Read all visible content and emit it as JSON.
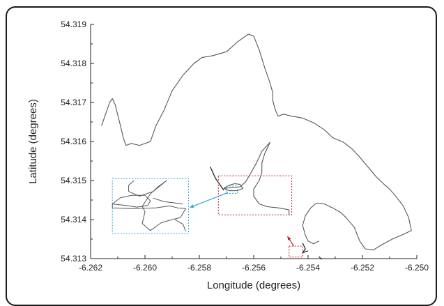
{
  "chart_data": {
    "type": "line",
    "xlabel": "Longitude (degrees)",
    "ylabel": "Latitude (degrees)",
    "xlim": [
      -6.262,
      -6.25
    ],
    "ylim": [
      54.313,
      54.319
    ],
    "xticks": [
      "-6.262",
      "-6.260",
      "-6.258",
      "-6.256",
      "-6.254",
      "-6.252",
      "-6.250"
    ],
    "yticks": [
      "54.313",
      "54.314",
      "54.315",
      "54.316",
      "54.317",
      "54.318",
      "54.319"
    ],
    "grid": false,
    "colors": {
      "line": "#555555",
      "cyan": "#2aa7d8",
      "red": "#c0202a"
    },
    "main_path": [
      [
        -6.2616,
        54.3164
      ],
      [
        -6.2615,
        54.3166
      ],
      [
        -6.2613,
        54.317
      ],
      [
        -6.2612,
        54.3171
      ],
      [
        -6.2611,
        54.31695
      ],
      [
        -6.2609,
        54.3164
      ],
      [
        -6.2608,
        54.3161
      ],
      [
        -6.2607,
        54.3159
      ],
      [
        -6.2605,
        54.31595
      ],
      [
        -6.2602,
        54.3159
      ],
      [
        -6.2598,
        54.316
      ],
      [
        -6.2596,
        54.3164
      ],
      [
        -6.2593,
        54.3168
      ],
      [
        -6.259,
        54.3173
      ],
      [
        -6.2586,
        54.3177
      ],
      [
        -6.2582,
        54.318
      ],
      [
        -6.2579,
        54.31815
      ],
      [
        -6.2575,
        54.3182
      ],
      [
        -6.257,
        54.3183
      ],
      [
        -6.2566,
        54.31855
      ],
      [
        -6.2562,
        54.31875
      ],
      [
        -6.256,
        54.3187
      ],
      [
        -6.2558,
        54.31835
      ],
      [
        -6.2556,
        54.3179
      ],
      [
        -6.2554,
        54.3175
      ],
      [
        -6.2553,
        54.31725
      ],
      [
        -6.2553,
        54.31705
      ],
      [
        -6.2552,
        54.3168
      ],
      [
        -6.2551,
        54.31665
      ],
      [
        -6.2549,
        54.3167
      ],
      [
        -6.2546,
        54.31665
      ],
      [
        -6.2542,
        54.3166
      ],
      [
        -6.2538,
        54.31648
      ],
      [
        -6.2534,
        54.3163
      ],
      [
        -6.2531,
        54.3161
      ],
      [
        -6.2527,
        54.31598
      ],
      [
        -6.2524,
        54.31582
      ],
      [
        -6.2521,
        54.3156
      ],
      [
        -6.2518,
        54.31535
      ],
      [
        -6.2515,
        54.3151
      ],
      [
        -6.2512,
        54.3149
      ],
      [
        -6.251,
        54.31478
      ],
      [
        -6.2508,
        54.31462
      ],
      [
        -6.2505,
        54.31435
      ],
      [
        -6.2503,
        54.31405
      ],
      [
        -6.2502,
        54.31372
      ],
      [
        -6.2505,
        54.31362
      ],
      [
        -6.2509,
        54.3135
      ],
      [
        -6.2513,
        54.31335
      ],
      [
        -6.2516,
        54.31322
      ],
      [
        -6.2519,
        54.31325
      ],
      [
        -6.2521,
        54.31345
      ],
      [
        -6.2523,
        54.3138
      ],
      [
        -6.2526,
        54.31405
      ],
      [
        -6.2528,
        54.31418
      ],
      [
        -6.2531,
        54.3143
      ],
      [
        -6.2534,
        54.3144
      ],
      [
        -6.2537,
        54.31442
      ],
      [
        -6.2539,
        54.3143
      ],
      [
        -6.2541,
        54.3141
      ],
      [
        -6.2542,
        54.31385
      ],
      [
        -6.2541,
        54.3136
      ],
      [
        -6.254,
        54.31345
      ],
      [
        -6.2538,
        54.31338
      ],
      [
        -6.2536,
        54.31345
      ]
    ],
    "detail_path": [
      [
        -6.2571,
        54.3148
      ],
      [
        -6.2569,
        54.31488
      ],
      [
        -6.2567,
        54.31492
      ],
      [
        -6.2565,
        54.3149
      ],
      [
        -6.2564,
        54.3148
      ],
      [
        -6.2566,
        54.31474
      ],
      [
        -6.2569,
        54.31474
      ],
      [
        -6.2571,
        54.3148
      ],
      [
        -6.2565,
        54.31484
      ],
      [
        -6.2563,
        54.31496
      ],
      [
        -6.2561,
        54.3152
      ],
      [
        -6.2559,
        54.31545
      ],
      [
        -6.2557,
        54.31575
      ],
      [
        -6.2555,
        54.3159
      ],
      [
        -6.2554,
        54.31598
      ],
      [
        -6.2556,
        54.31568
      ],
      [
        -6.2557,
        54.31545
      ],
      [
        -6.2557,
        54.3152
      ],
      [
        -6.2558,
        54.315
      ],
      [
        -6.256,
        54.31478
      ],
      [
        -6.256,
        54.3146
      ],
      [
        -6.2558,
        54.3144
      ],
      [
        -6.2555,
        54.31433
      ],
      [
        -6.2551,
        54.3143
      ],
      [
        -6.2547,
        54.31425
      ],
      [
        -6.2547,
        54.31412
      ]
    ],
    "small_islands": [
      [
        [
          -6.2571,
          54.31475
        ],
        [
          -6.2574,
          54.31505
        ],
        [
          -6.2576,
          54.31535
        ]
      ],
      [
        [
          -6.2542,
          54.3134
        ],
        [
          -6.2541,
          54.31325
        ],
        [
          -6.2542,
          54.31315
        ],
        [
          -6.254,
          54.3132
        ]
      ],
      [
        [
          -6.2536,
          54.31305
        ],
        [
          -6.2535,
          54.31298
        ]
      ]
    ],
    "inset_path": [
      [
        -6.2612,
        54.3144
      ],
      [
        -6.2609,
        54.31456
      ],
      [
        -6.2605,
        54.31462
      ],
      [
        -6.26,
        54.31462
      ],
      [
        -6.2598,
        54.31448
      ],
      [
        -6.2599,
        54.31436
      ],
      [
        -6.2603,
        54.31432
      ],
      [
        -6.2607,
        54.31436
      ],
      [
        -6.2612,
        54.3144
      ],
      [
        -6.2612,
        54.3143
      ],
      [
        -6.2605,
        54.31428
      ],
      [
        -6.2596,
        54.3143
      ],
      [
        -6.2591,
        54.31435
      ],
      [
        -6.2588,
        54.3143
      ],
      [
        -6.2585,
        54.31428
      ],
      [
        -6.2587,
        54.31405
      ],
      [
        -6.259,
        54.314
      ],
      [
        -6.2594,
        54.31392
      ],
      [
        -6.2598,
        54.31372
      ],
      [
        -6.2601,
        54.3139
      ],
      [
        -6.26,
        54.3142
      ],
      [
        -6.2601,
        54.31434
      ],
      [
        -6.2598,
        54.31466
      ],
      [
        -6.2595,
        54.31485
      ],
      [
        -6.2592,
        54.315
      ],
      [
        -6.2597,
        54.31472
      ],
      [
        -6.2602,
        54.3146
      ],
      [
        -6.2606,
        54.31472
      ],
      [
        -6.2606,
        54.31488
      ],
      [
        -6.2604,
        54.315
      ]
    ],
    "inset_extra": [
      [
        [
          -6.2589,
          54.314
        ],
        [
          -6.2586,
          54.31388
        ],
        [
          -6.2585,
          54.3137
        ]
      ],
      [
        [
          -6.2597,
          54.31455
        ],
        [
          -6.2593,
          54.31446
        ],
        [
          -6.2586,
          54.3144
        ]
      ]
    ],
    "boxes": {
      "cyan_small": {
        "x": [
          -6.257,
          -6.2566
        ],
        "y": [
          54.31467,
          54.31486
        ]
      },
      "red_large": {
        "x": [
          -6.2573,
          -6.2546
        ],
        "y": [
          54.31412,
          54.31512
        ]
      },
      "cyan_inset": {
        "x": [
          -6.2612,
          -6.2584
        ],
        "y": [
          54.31364,
          54.31505
        ]
      },
      "red_small": {
        "x": [
          -6.2547,
          -6.2542
        ],
        "y": [
          54.31304,
          54.31332
        ]
      }
    }
  }
}
